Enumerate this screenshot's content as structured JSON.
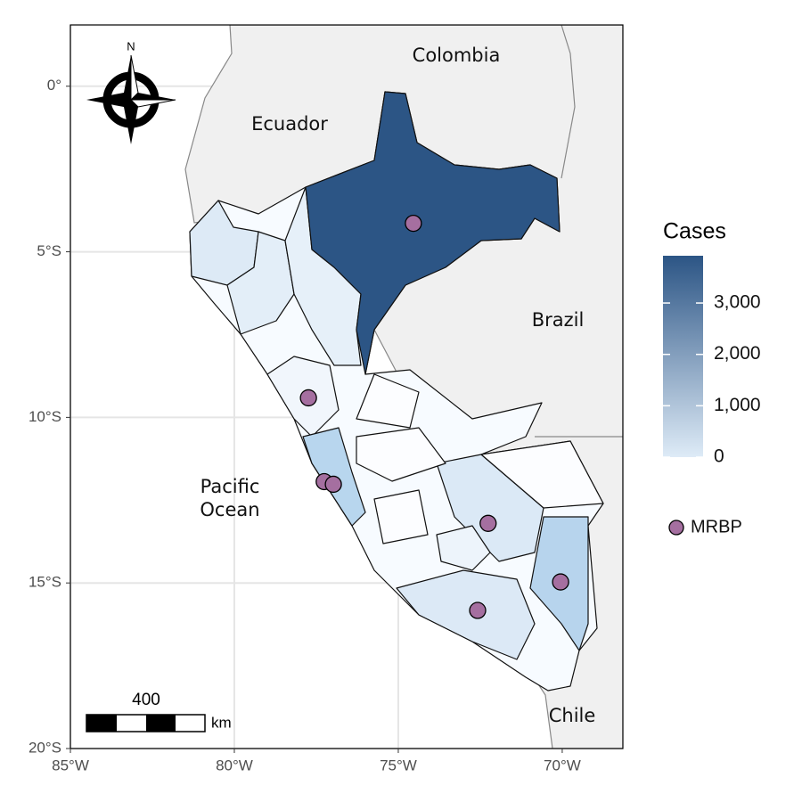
{
  "map": {
    "xlim": [
      -85,
      -68.15
    ],
    "ylim": [
      -20,
      1.85
    ],
    "xticks": [
      {
        "value": -85,
        "label": "85°W"
      },
      {
        "value": -80,
        "label": "80°W"
      },
      {
        "value": -75,
        "label": "75°W"
      },
      {
        "value": -70,
        "label": "70°W"
      }
    ],
    "yticks": [
      {
        "value": 0,
        "label": "0°"
      },
      {
        "value": -5,
        "label": "5°S"
      },
      {
        "value": -10,
        "label": "10°S"
      },
      {
        "value": -15,
        "label": "15°S"
      },
      {
        "value": -20,
        "label": "20°S"
      }
    ],
    "places": {
      "colombia": "Colombia",
      "ecuador": "Ecuador",
      "brazil": "Brazil",
      "chile": "Chile",
      "ocean_1": "Pacific",
      "ocean_2": "Ocean"
    },
    "compass": "N",
    "scale_bar": {
      "distance": "400",
      "unit": "km"
    },
    "legend": {
      "title": "Cases",
      "lim": [
        0,
        3920
      ],
      "colors": [
        "#deebf7",
        "#2c5585"
      ],
      "ticks": [
        0,
        {
          "value": 1000,
          "label": "1,000"
        },
        {
          "value": 2000,
          "label": "2,000"
        },
        {
          "value": 3000,
          "label": "3,000"
        }
      ]
    },
    "points": {
      "name": "MRBP",
      "color": "#a56fa0",
      "lon": [
        -74.54,
        -77.74,
        -77.26,
        -76.98,
        -72.26,
        -70.05,
        -72.58
      ],
      "lat": [
        -4.14,
        -9.41,
        -11.94,
        -12.02,
        -13.2,
        -14.97,
        -15.83
      ]
    }
  }
}
